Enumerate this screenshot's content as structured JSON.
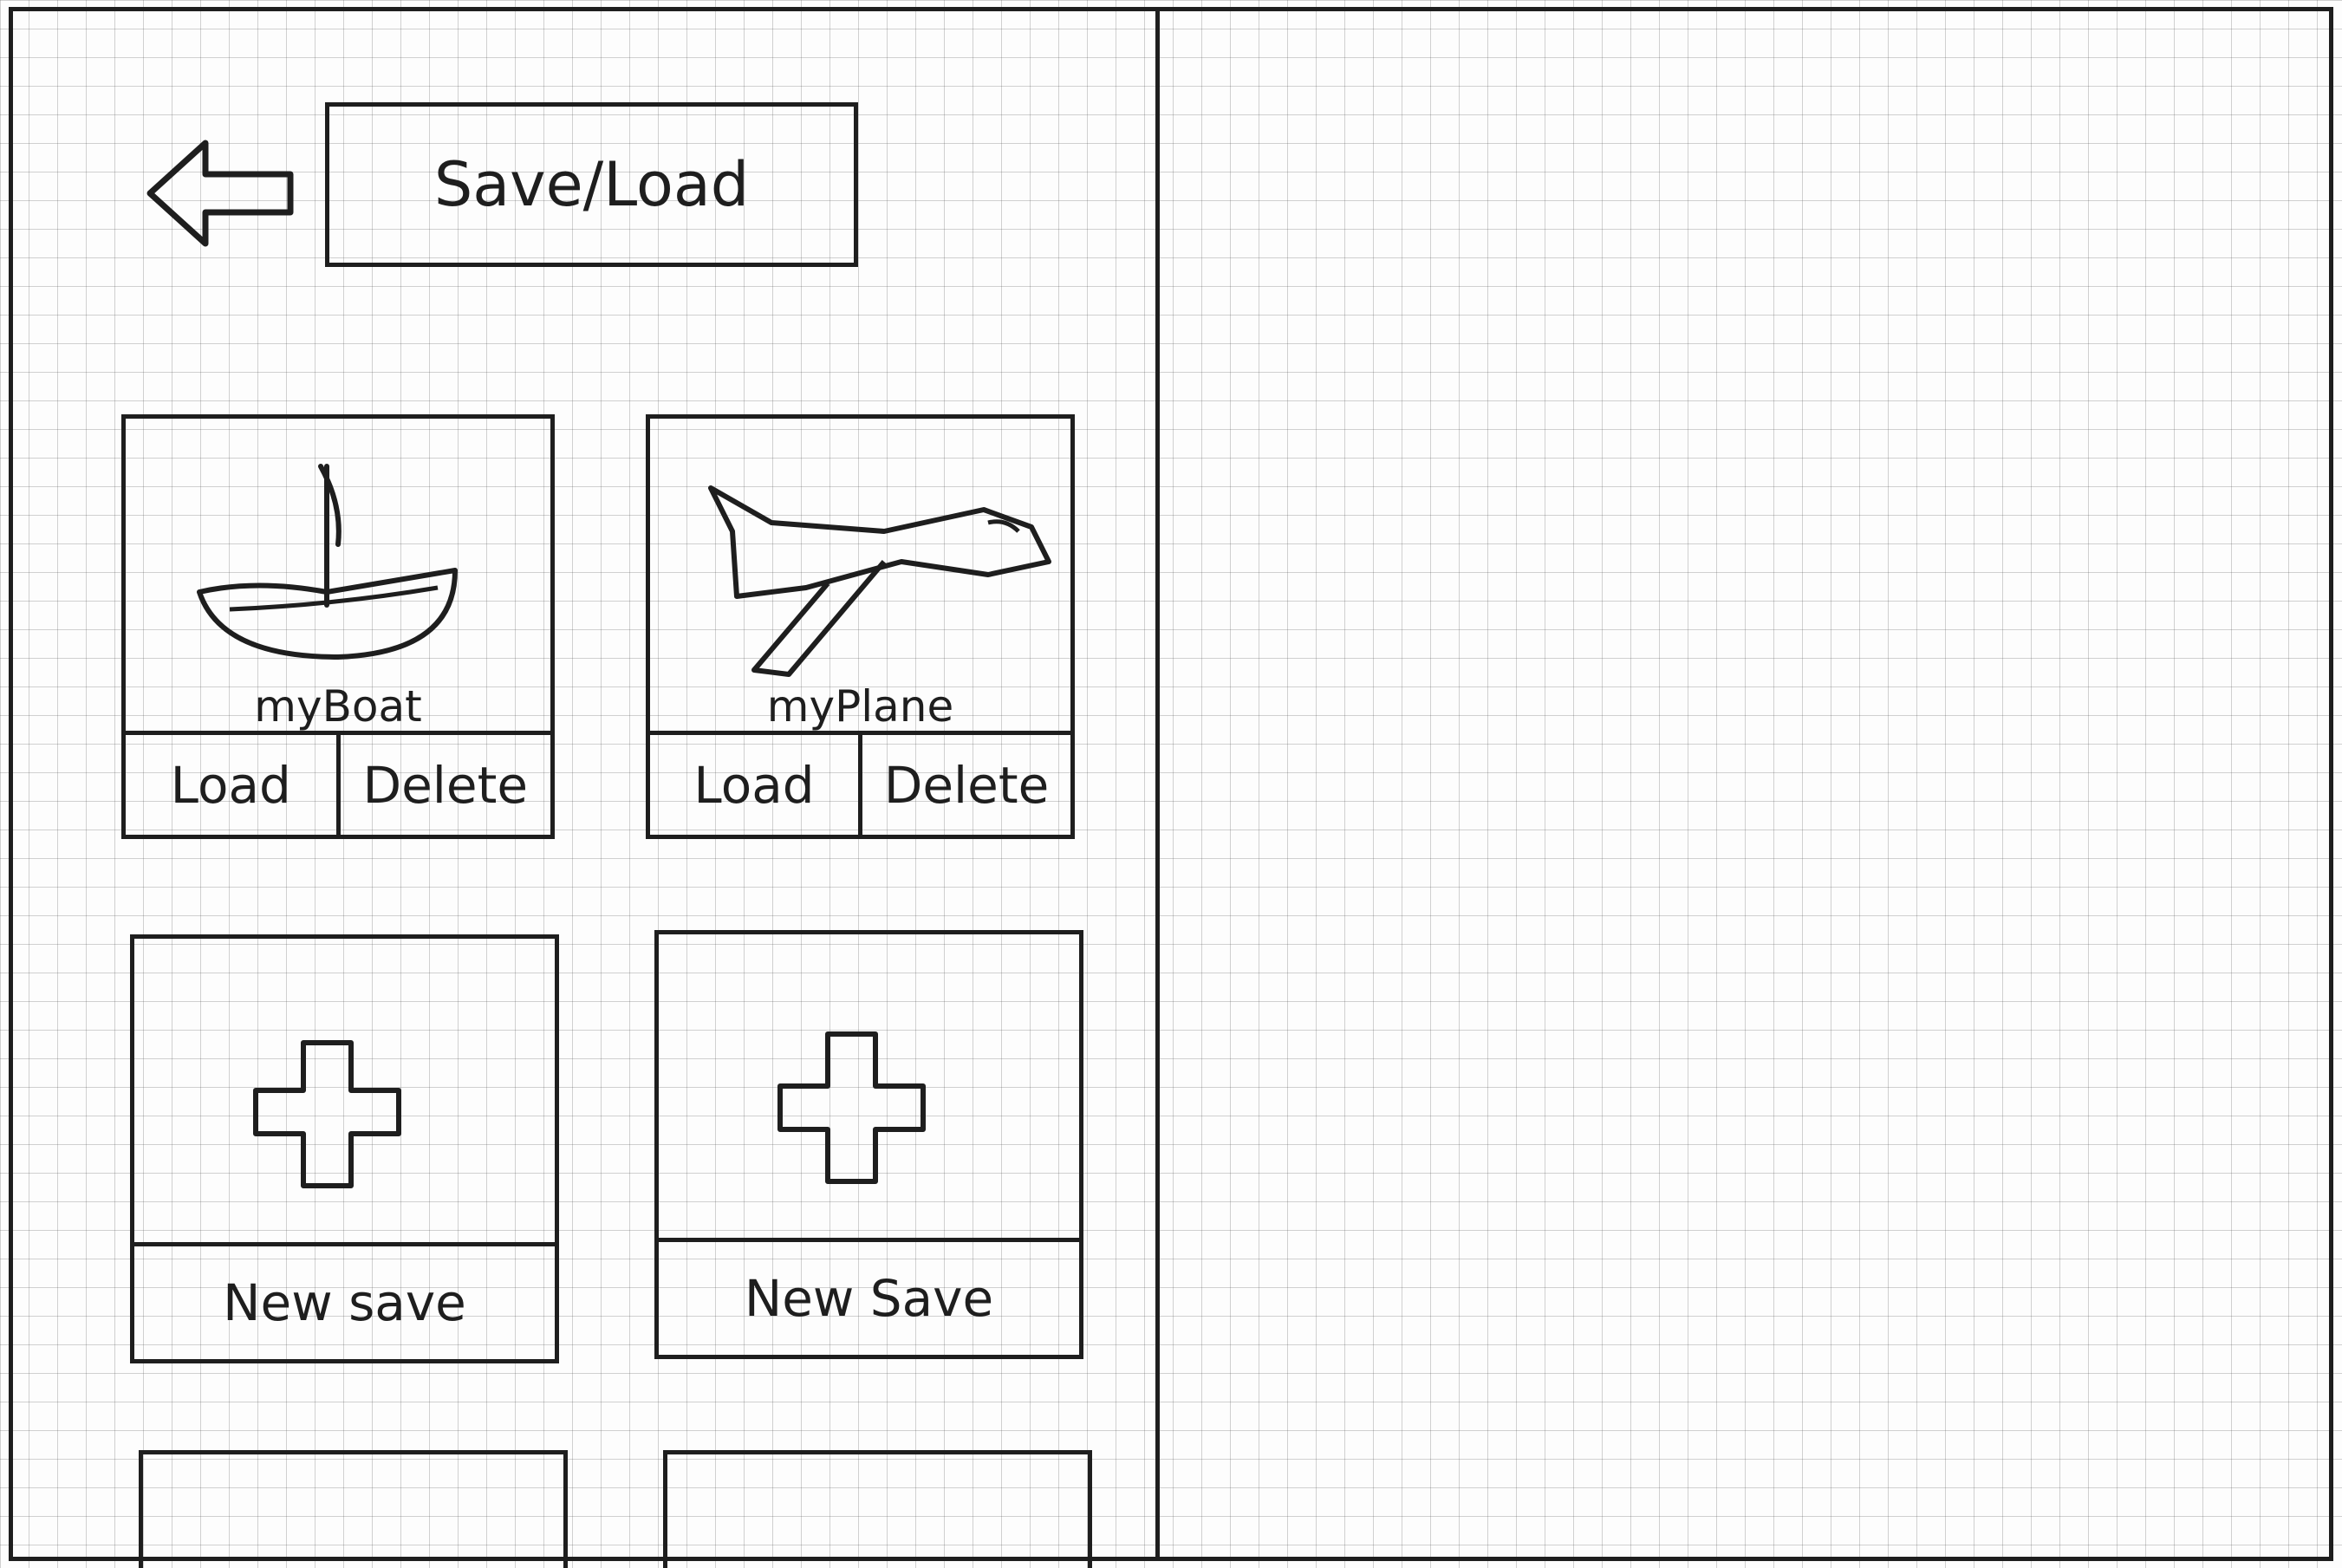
{
  "header": {
    "back_icon": "arrow-left-icon",
    "title": "Save/Load"
  },
  "saves": [
    {
      "name": "myBoat",
      "thumbnail_icon": "boat-icon",
      "load_label": "Load",
      "delete_label": "Delete"
    },
    {
      "name": "myPlane",
      "thumbnail_icon": "plane-icon",
      "load_label": "Load",
      "delete_label": "Delete"
    }
  ],
  "new_slots": [
    {
      "label": "New save",
      "icon": "plus-icon"
    },
    {
      "label": "New Save",
      "icon": "plus-icon"
    }
  ],
  "colors": {
    "ink": "#1e1e1e",
    "paper": "#fdfdfd",
    "grid": "#5a5a5a"
  }
}
